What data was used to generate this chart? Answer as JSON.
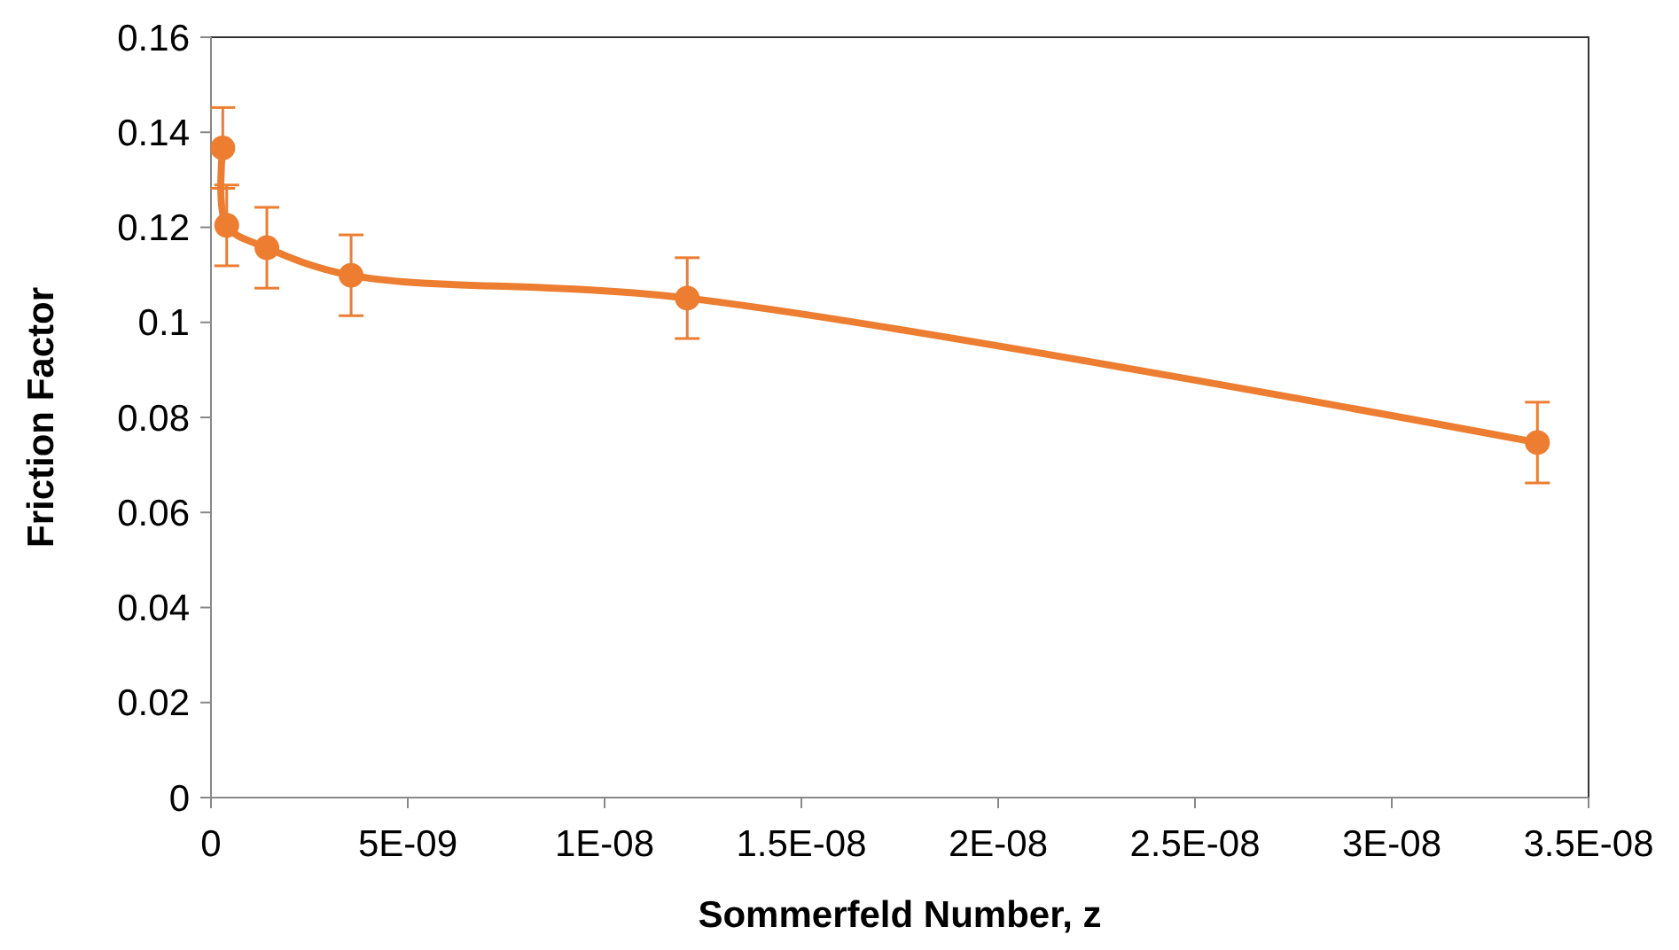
{
  "chart_data": {
    "type": "line",
    "xlabel": "Sommerfeld Number, z",
    "ylabel": "Friction Factor",
    "x": [
      3e-10,
      4e-10,
      1.42e-09,
      3.56e-09,
      1.21e-08,
      3.37e-08
    ],
    "series": [
      {
        "color": "#ed7d31",
        "values": [
          0.1367,
          0.1204,
          0.1157,
          0.1099,
          0.1051,
          0.0747
        ],
        "errors": [
          0.0085,
          0.0085,
          0.0085,
          0.0085,
          0.0085,
          0.0085
        ]
      }
    ],
    "xlim": [
      0,
      3.5e-08
    ],
    "xticks": [
      0,
      {
        "value": 5e-09,
        "label": "5E-09"
      },
      {
        "value": 1e-08,
        "label": "1E-08"
      },
      {
        "value": 1.5e-08,
        "label": "1.5E-08"
      },
      {
        "value": 2e-08,
        "label": "2E-08"
      },
      {
        "value": 2.5e-08,
        "label": "2.5E-08"
      },
      {
        "value": 3e-08,
        "label": "3E-08"
      },
      {
        "value": 3.5e-08,
        "label": "3.5E-08"
      }
    ],
    "ylim": [
      0,
      0.16
    ],
    "yticks": [
      0,
      0.02,
      0.04,
      0.06,
      0.08,
      0.1,
      0.12,
      0.14,
      0.16
    ],
    "grid": false,
    "marker": "circle",
    "line_style": "solid"
  }
}
